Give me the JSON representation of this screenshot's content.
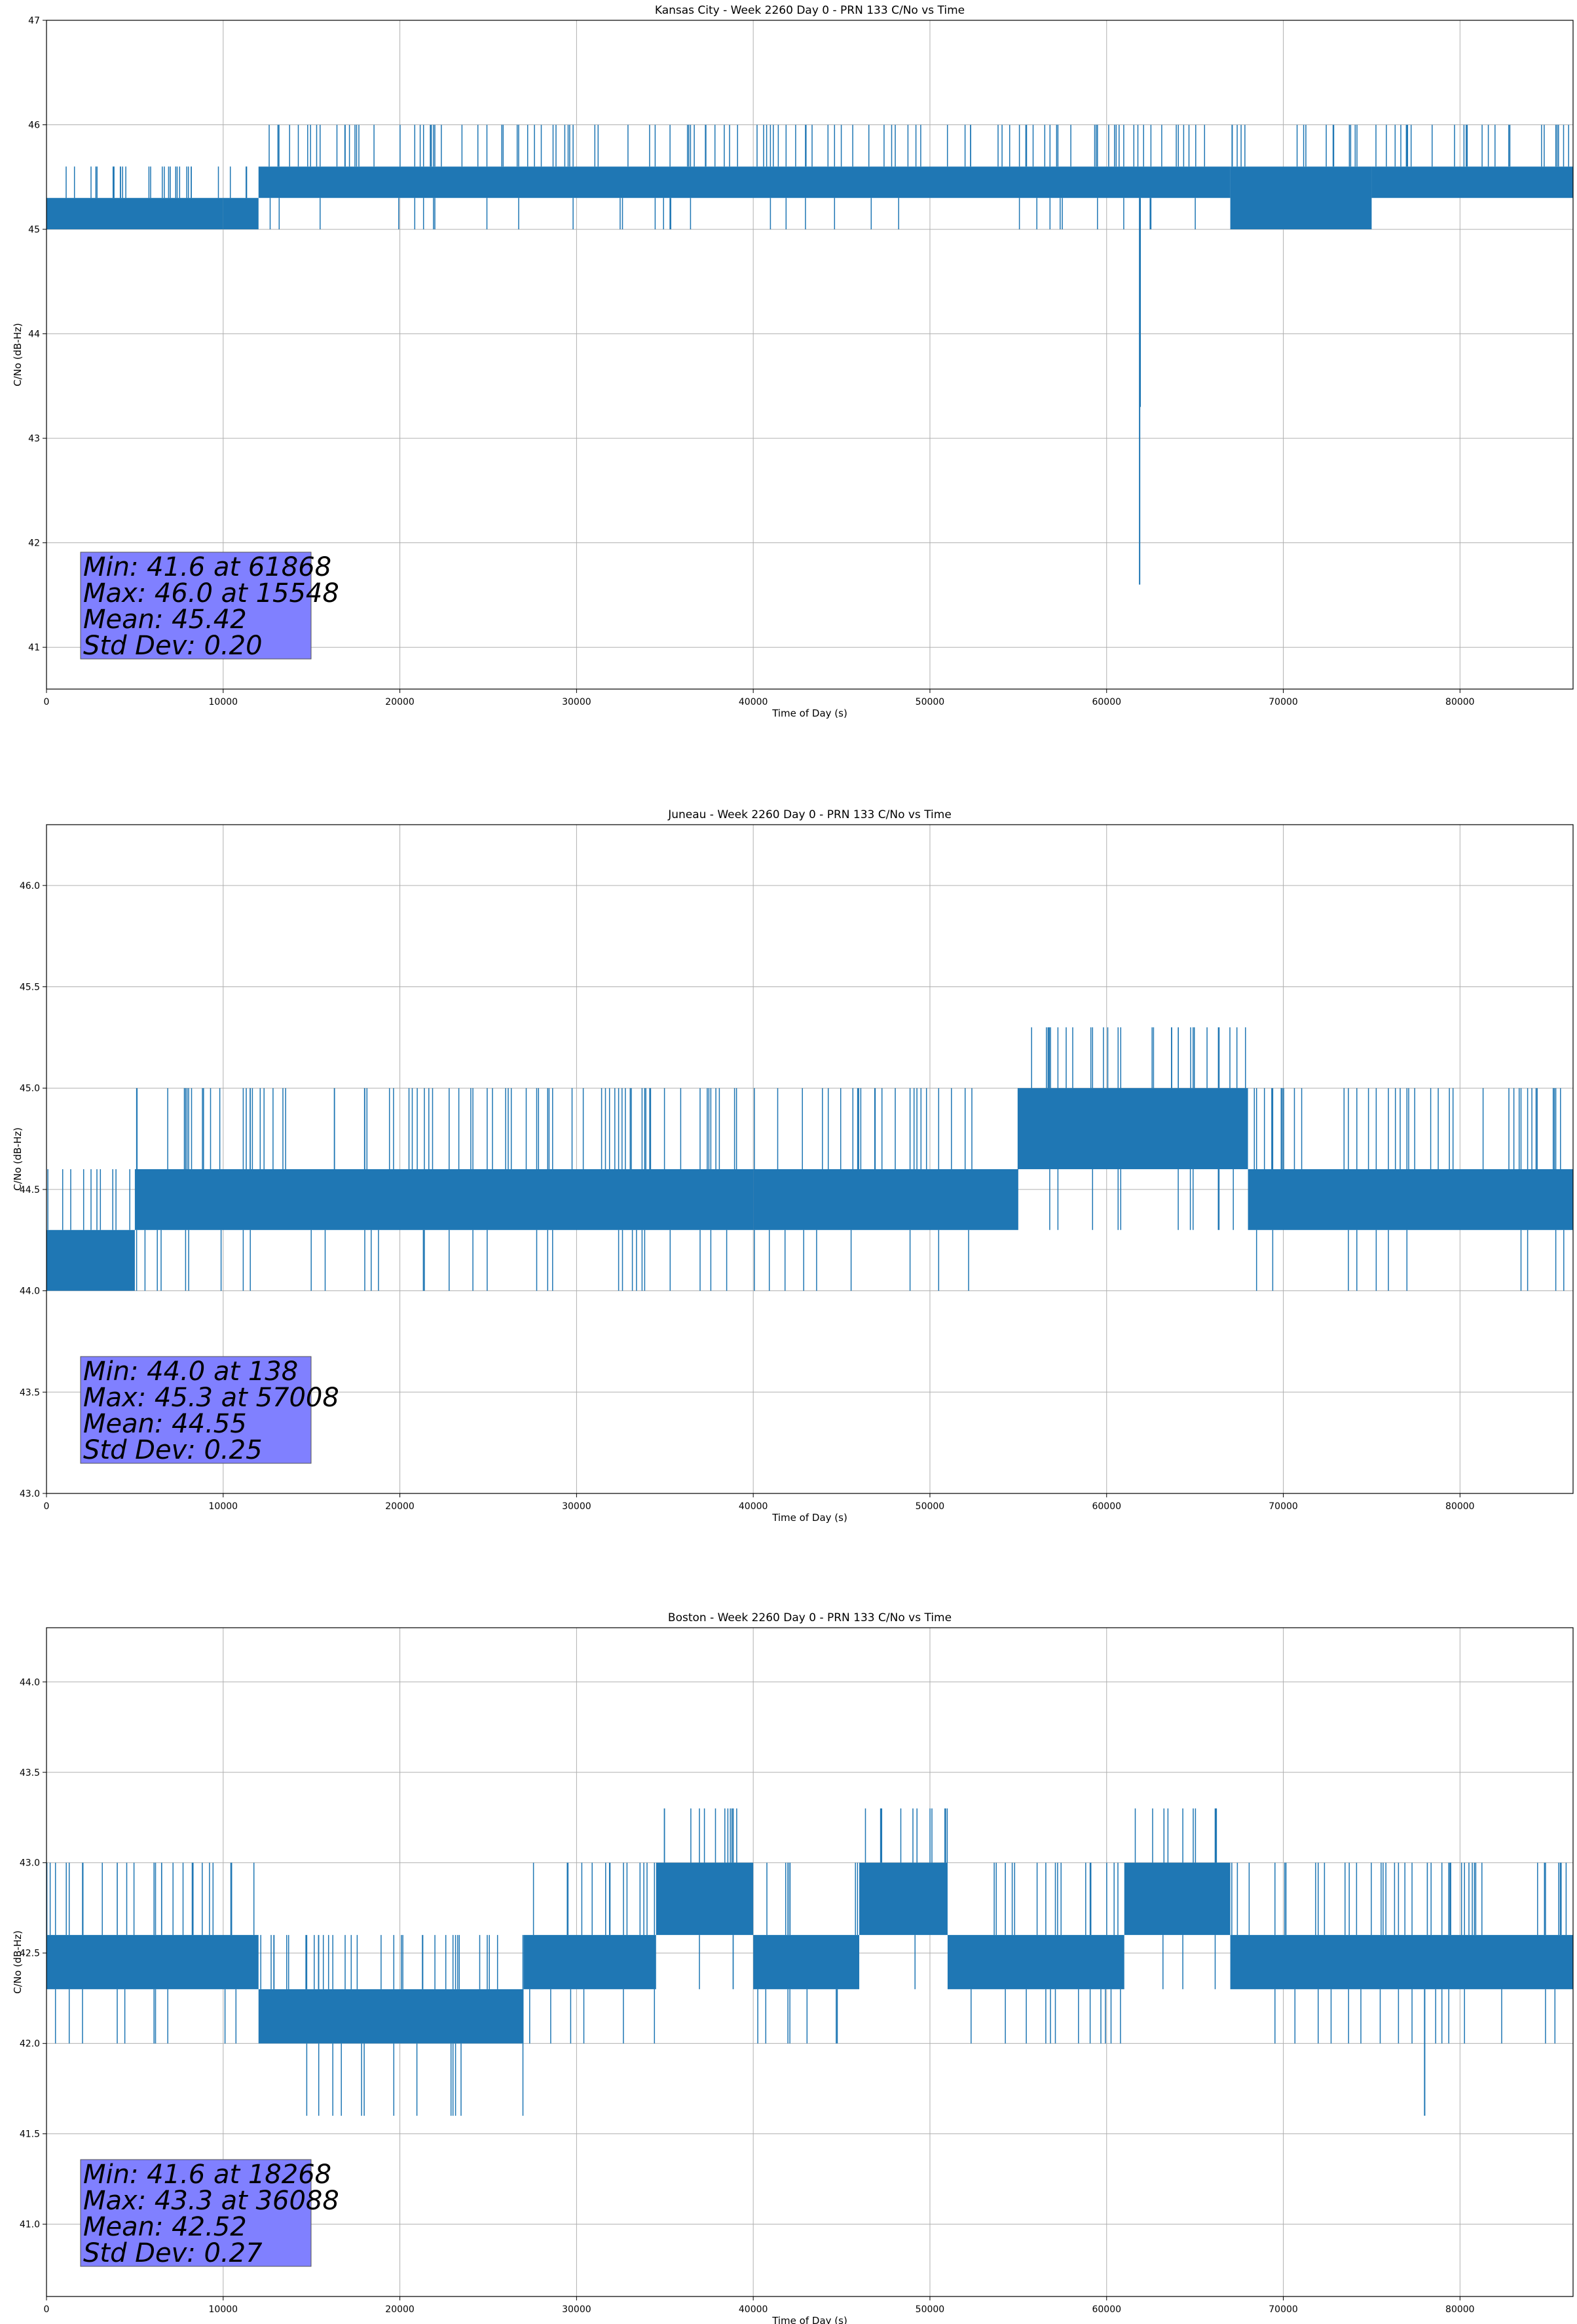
{
  "chart_data": [
    {
      "type": "line",
      "title": "Kansas City - Week 2260 Day 0 - PRN 133 C/No vs Time",
      "xlabel": "Time of Day (s)",
      "ylabel": "C/No (dB-Hz)",
      "xlim": [
        0,
        86400
      ],
      "ylim": [
        40.6,
        47.0
      ],
      "xticks": [
        0,
        10000,
        20000,
        30000,
        40000,
        50000,
        60000,
        70000,
        80000
      ],
      "xtick_labels": [
        "0",
        "10000",
        "20000",
        "30000",
        "40000",
        "50000",
        "60000",
        "70000",
        "80000"
      ],
      "yticks": [
        41,
        42,
        43,
        44,
        45,
        46,
        47
      ],
      "ytick_labels": [
        "41",
        "42",
        "43",
        "44",
        "45",
        "46",
        "47"
      ],
      "grid": true,
      "series_color": "#1f77b4",
      "levels": [
        45.0,
        45.3,
        45.6,
        46.0
      ],
      "segments": [
        {
          "x": [
            0,
            10000
          ],
          "band": [
            45.0,
            45.3
          ],
          "up": [
            45.6
          ],
          "down": []
        },
        {
          "x": [
            10000,
            12000
          ],
          "band": [
            45.0,
            45.3
          ],
          "up": [
            45.6
          ],
          "down": []
        },
        {
          "x": [
            12000,
            48000
          ],
          "band": [
            45.3,
            45.6
          ],
          "up": [
            46.0
          ],
          "down": [
            45.0
          ]
        },
        {
          "x": [
            48000,
            67000
          ],
          "band": [
            45.3,
            45.6
          ],
          "up": [
            46.0
          ],
          "down": [
            45.0
          ]
        },
        {
          "x": [
            67000,
            75000
          ],
          "band": [
            45.0,
            45.6
          ],
          "up": [
            46.0
          ],
          "down": []
        },
        {
          "x": [
            75000,
            86400
          ],
          "band": [
            45.3,
            45.6
          ],
          "up": [
            46.0
          ],
          "down": []
        }
      ],
      "spikes": [
        {
          "x": 61868,
          "y": 41.6
        },
        {
          "x": 61900,
          "y": 43.3
        }
      ],
      "stats": {
        "min": "Min: 41.6 at 61868",
        "max": "Max: 46.0 at 15548",
        "mean": "Mean: 45.42",
        "std": "Std Dev: 0.20"
      },
      "stats_box_color": "#8080ff"
    },
    {
      "type": "line",
      "title": "Juneau - Week 2260 Day 0 - PRN 133 C/No vs Time",
      "xlabel": "Time of Day (s)",
      "ylabel": "C/No (dB-Hz)",
      "xlim": [
        0,
        86400
      ],
      "ylim": [
        43.0,
        46.3
      ],
      "xticks": [
        0,
        10000,
        20000,
        30000,
        40000,
        50000,
        60000,
        70000,
        80000
      ],
      "xtick_labels": [
        "0",
        "10000",
        "20000",
        "30000",
        "40000",
        "50000",
        "60000",
        "70000",
        "80000"
      ],
      "yticks": [
        43.0,
        43.5,
        44.0,
        44.5,
        45.0,
        45.5,
        46.0
      ],
      "ytick_labels": [
        "43.0",
        "43.5",
        "44.0",
        "44.5",
        "45.0",
        "45.5",
        "46.0"
      ],
      "grid": true,
      "series_color": "#1f77b4",
      "levels": [
        44.0,
        44.3,
        44.6,
        45.0,
        45.3
      ],
      "segments": [
        {
          "x": [
            0,
            5000
          ],
          "band": [
            44.0,
            44.3
          ],
          "up": [
            44.6
          ],
          "down": []
        },
        {
          "x": [
            5000,
            40000
          ],
          "band": [
            44.3,
            44.6
          ],
          "up": [
            45.0
          ],
          "down": [
            44.0
          ]
        },
        {
          "x": [
            40000,
            55000
          ],
          "band": [
            44.3,
            44.6
          ],
          "up": [
            45.0
          ],
          "down": [
            44.0
          ]
        },
        {
          "x": [
            55000,
            68000
          ],
          "band": [
            44.6,
            45.0
          ],
          "up": [
            45.3
          ],
          "down": [
            44.3
          ]
        },
        {
          "x": [
            68000,
            86400
          ],
          "band": [
            44.3,
            44.6
          ],
          "up": [
            45.0
          ],
          "down": [
            44.0
          ]
        }
      ],
      "spikes": [],
      "stats": {
        "min": "Min: 44.0 at 138",
        "max": "Max: 45.3 at 57008",
        "mean": "Mean: 44.55",
        "std": "Std Dev: 0.25"
      },
      "stats_box_color": "#8080ff"
    },
    {
      "type": "line",
      "title": "Boston - Week 2260 Day 0 - PRN 133 C/No vs Time",
      "xlabel": "Time of Day (s)",
      "ylabel": "C/No (dB-Hz)",
      "xlim": [
        0,
        86400
      ],
      "ylim": [
        40.6,
        44.3
      ],
      "xticks": [
        0,
        10000,
        20000,
        30000,
        40000,
        50000,
        60000,
        70000,
        80000
      ],
      "xtick_labels": [
        "0",
        "10000",
        "20000",
        "30000",
        "40000",
        "50000",
        "60000",
        "70000",
        "80000"
      ],
      "yticks": [
        41.0,
        41.5,
        42.0,
        42.5,
        43.0,
        43.5,
        44.0
      ],
      "ytick_labels": [
        "41.0",
        "41.5",
        "42.0",
        "42.5",
        "43.0",
        "43.5",
        "44.0"
      ],
      "grid": true,
      "series_color": "#1f77b4",
      "levels": [
        41.6,
        42.0,
        42.3,
        42.6,
        43.0,
        43.3
      ],
      "segments": [
        {
          "x": [
            0,
            12000
          ],
          "band": [
            42.3,
            42.6
          ],
          "up": [
            43.0
          ],
          "down": [
            42.0
          ]
        },
        {
          "x": [
            12000,
            27000
          ],
          "band": [
            42.0,
            42.3
          ],
          "up": [
            42.6
          ],
          "down": [
            41.6
          ]
        },
        {
          "x": [
            27000,
            34500
          ],
          "band": [
            42.3,
            42.6
          ],
          "up": [
            43.0
          ],
          "down": [
            42.0
          ]
        },
        {
          "x": [
            34500,
            40000
          ],
          "band": [
            42.6,
            43.0
          ],
          "up": [
            43.3
          ],
          "down": [
            42.3
          ]
        },
        {
          "x": [
            40000,
            46000
          ],
          "band": [
            42.3,
            42.6
          ],
          "up": [
            43.0
          ],
          "down": [
            42.0
          ]
        },
        {
          "x": [
            46000,
            51000
          ],
          "band": [
            42.6,
            43.0
          ],
          "up": [
            43.3
          ],
          "down": [
            42.3
          ]
        },
        {
          "x": [
            51000,
            61000
          ],
          "band": [
            42.3,
            42.6
          ],
          "up": [
            43.0
          ],
          "down": [
            42.0
          ]
        },
        {
          "x": [
            61000,
            67000
          ],
          "band": [
            42.6,
            43.0
          ],
          "up": [
            43.3
          ],
          "down": [
            42.3
          ]
        },
        {
          "x": [
            67000,
            86400
          ],
          "band": [
            42.3,
            42.6
          ],
          "up": [
            43.0
          ],
          "down": [
            42.0
          ]
        }
      ],
      "spikes": [
        {
          "x": 78000,
          "y": 41.6
        }
      ],
      "stats": {
        "min": "Min: 41.6 at 18268",
        "max": "Max: 43.3 at 36088",
        "mean": "Mean: 42.52",
        "std": "Std Dev: 0.27"
      },
      "stats_box_color": "#8080ff"
    }
  ]
}
